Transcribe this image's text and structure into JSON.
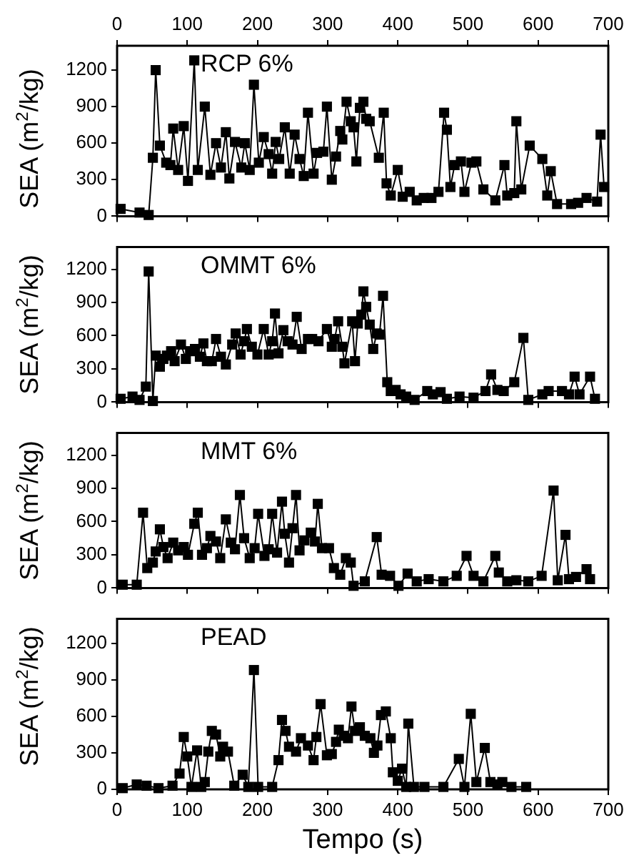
{
  "chart_data": [
    {
      "type": "line",
      "color": "#000000",
      "marker": "square",
      "line_style": "solid",
      "annotations": [
        "RCP 6%"
      ],
      "ylabel": "SEA (m$^{2}$/kg)",
      "xlim": [
        0,
        700
      ],
      "xticks": [
        0,
        100,
        200,
        300,
        400,
        500,
        600,
        700
      ],
      "x2lim": [
        0,
        700
      ],
      "x2ticks": [
        0,
        100,
        200,
        300,
        400,
        500,
        600,
        700
      ],
      "ylim": [
        0,
        1400
      ],
      "yticks": [
        0,
        300,
        600,
        900,
        1200
      ],
      "tick_labels": "y",
      "x": [
        5,
        32,
        45,
        51,
        55,
        61,
        70,
        76,
        80,
        87,
        95,
        101,
        110,
        115,
        125,
        133,
        141,
        148,
        155,
        160,
        168,
        177,
        182,
        189,
        195,
        202,
        209,
        216,
        221,
        226,
        231,
        239,
        246,
        253,
        260,
        266,
        272,
        280,
        285,
        294,
        299,
        306,
        312,
        318,
        321,
        327,
        333,
        337,
        341,
        346,
        351,
        355,
        360,
        373,
        380,
        384,
        390,
        400,
        407,
        417,
        427,
        437,
        448,
        458,
        466,
        470,
        475,
        481,
        490,
        495,
        505,
        512,
        522,
        539,
        552,
        556,
        566,
        569,
        576,
        588,
        606,
        613,
        618,
        627,
        647,
        657,
        669,
        684,
        689,
        694
      ],
      "values": [
        60,
        30,
        10,
        480,
        1200,
        580,
        440,
        420,
        720,
        380,
        740,
        290,
        1280,
        380,
        900,
        340,
        600,
        400,
        690,
        310,
        610,
        400,
        600,
        380,
        1080,
        440,
        650,
        510,
        350,
        610,
        470,
        730,
        350,
        670,
        470,
        330,
        850,
        350,
        520,
        530,
        900,
        300,
        490,
        700,
        630,
        940,
        780,
        730,
        450,
        890,
        940,
        800,
        780,
        480,
        850,
        270,
        170,
        380,
        160,
        200,
        130,
        150,
        150,
        200,
        850,
        710,
        240,
        420,
        450,
        200,
        440,
        450,
        220,
        130,
        420,
        170,
        190,
        780,
        220,
        580,
        470,
        170,
        370,
        100,
        100,
        110,
        150,
        120,
        670,
        240
      ]
    },
    {
      "type": "line",
      "color": "#000000",
      "marker": "square",
      "line_style": "solid",
      "annotations": [
        "OMMT 6%"
      ],
      "ylabel": "SEA (m$^{2}$/kg)",
      "xlim": [
        0,
        700
      ],
      "xticks": [
        0,
        100,
        200,
        300,
        400,
        500,
        600,
        700
      ],
      "ylim": [
        0,
        1400
      ],
      "yticks": [
        0,
        300,
        600,
        900,
        1200
      ],
      "tick_labels": "y",
      "x": [
        5,
        22,
        32,
        41,
        45,
        51,
        55,
        61,
        66,
        71,
        77,
        82,
        91,
        98,
        104,
        111,
        118,
        123,
        128,
        135,
        141,
        148,
        155,
        164,
        169,
        176,
        181,
        185,
        192,
        200,
        209,
        216,
        221,
        225,
        230,
        237,
        243,
        250,
        256,
        263,
        272,
        278,
        287,
        299,
        306,
        310,
        315,
        321,
        324,
        335,
        339,
        343,
        348,
        351,
        355,
        360,
        365,
        370,
        374,
        379,
        385,
        390,
        397,
        404,
        412,
        424,
        442,
        450,
        461,
        470,
        488,
        508,
        525,
        533,
        542,
        551,
        566,
        579,
        586,
        606,
        615,
        634,
        644,
        652,
        659,
        674,
        681
      ],
      "values": [
        30,
        50,
        20,
        140,
        1180,
        10,
        420,
        320,
        390,
        420,
        460,
        370,
        520,
        390,
        460,
        480,
        410,
        530,
        370,
        370,
        570,
        410,
        340,
        520,
        620,
        430,
        550,
        660,
        500,
        430,
        660,
        430,
        550,
        800,
        440,
        650,
        550,
        520,
        770,
        480,
        570,
        570,
        550,
        660,
        500,
        570,
        730,
        500,
        350,
        730,
        370,
        710,
        790,
        1000,
        860,
        700,
        480,
        620,
        610,
        960,
        180,
        100,
        110,
        70,
        50,
        20,
        100,
        70,
        90,
        30,
        50,
        40,
        100,
        250,
        110,
        100,
        180,
        580,
        20,
        70,
        100,
        100,
        70,
        230,
        70,
        230,
        30
      ]
    },
    {
      "type": "line",
      "color": "#000000",
      "marker": "square",
      "line_style": "solid",
      "annotations": [
        "MMT 6%"
      ],
      "ylabel": "SEA (m$^{2}$/kg)",
      "xlim": [
        0,
        700
      ],
      "xticks": [
        0,
        100,
        200,
        300,
        400,
        500,
        600,
        700
      ],
      "ylim": [
        0,
        1400
      ],
      "yticks": [
        0,
        300,
        600,
        900,
        1200
      ],
      "tick_labels": "y",
      "x": [
        8,
        28,
        37,
        43,
        51,
        55,
        61,
        66,
        72,
        80,
        87,
        95,
        101,
        110,
        115,
        121,
        128,
        133,
        141,
        147,
        155,
        162,
        168,
        175,
        181,
        189,
        196,
        201,
        210,
        216,
        221,
        228,
        235,
        239,
        245,
        250,
        255,
        260,
        267,
        276,
        282,
        286,
        292,
        302,
        309,
        318,
        326,
        333,
        337,
        353,
        370,
        377,
        389,
        401,
        414,
        427,
        444,
        465,
        484,
        498,
        508,
        522,
        539,
        544,
        556,
        569,
        586,
        605,
        622,
        628,
        639,
        644,
        654,
        669,
        674
      ],
      "values": [
        30,
        30,
        680,
        180,
        230,
        330,
        530,
        370,
        270,
        410,
        340,
        370,
        300,
        580,
        680,
        300,
        360,
        470,
        420,
        270,
        620,
        410,
        350,
        840,
        450,
        270,
        360,
        670,
        290,
        350,
        670,
        320,
        780,
        490,
        230,
        540,
        840,
        340,
        430,
        500,
        420,
        760,
        360,
        360,
        180,
        120,
        270,
        230,
        20,
        60,
        460,
        120,
        110,
        20,
        130,
        60,
        80,
        60,
        110,
        290,
        110,
        60,
        290,
        140,
        60,
        70,
        60,
        110,
        880,
        70,
        480,
        80,
        100,
        170,
        80
      ]
    },
    {
      "type": "line",
      "color": "#000000",
      "marker": "square",
      "line_style": "solid",
      "annotations": [
        "PEAD"
      ],
      "ylabel": "SEA (m$^{2}$/kg)",
      "xlabel": "Tempo (s)",
      "xlim": [
        0,
        700
      ],
      "xticks": [
        0,
        100,
        200,
        300,
        400,
        500,
        600,
        700
      ],
      "ylim": [
        0,
        1400
      ],
      "yticks": [
        0,
        300,
        600,
        900,
        1200
      ],
      "x": [
        8,
        28,
        42,
        59,
        79,
        89,
        95,
        100,
        106,
        114,
        120,
        125,
        130,
        135,
        141,
        147,
        151,
        158,
        167,
        179,
        187,
        195,
        201,
        221,
        230,
        235,
        240,
        245,
        255,
        262,
        272,
        280,
        284,
        290,
        299,
        306,
        312,
        316,
        323,
        329,
        334,
        339,
        346,
        353,
        361,
        366,
        371,
        376,
        383,
        390,
        393,
        400,
        406,
        412,
        415,
        423,
        438,
        465,
        487,
        495,
        504,
        512,
        524,
        532,
        542,
        549,
        562,
        583
      ],
      "values": [
        10,
        40,
        30,
        10,
        30,
        130,
        430,
        270,
        20,
        320,
        20,
        60,
        310,
        480,
        450,
        270,
        350,
        310,
        30,
        120,
        20,
        980,
        20,
        20,
        240,
        570,
        480,
        350,
        310,
        420,
        360,
        240,
        430,
        700,
        280,
        290,
        390,
        490,
        440,
        420,
        680,
        480,
        510,
        440,
        420,
        300,
        360,
        610,
        640,
        420,
        140,
        70,
        170,
        20,
        540,
        20,
        20,
        20,
        250,
        20,
        620,
        60,
        340,
        60,
        40,
        60,
        20,
        20
      ]
    }
  ]
}
